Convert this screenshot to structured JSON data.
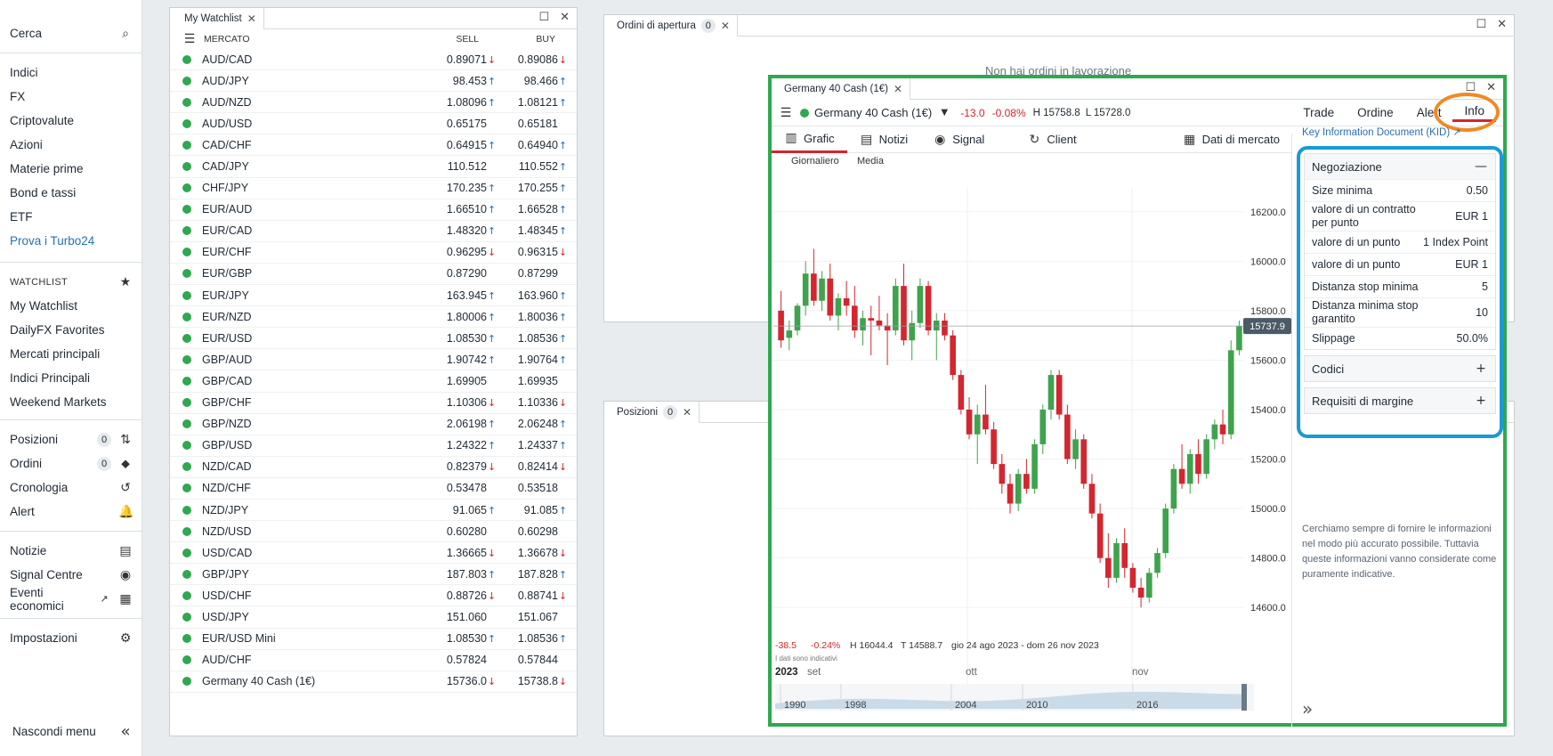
{
  "sidebar": {
    "search": "Cerca",
    "markets": [
      "Indici",
      "FX",
      "Criptovalute",
      "Azioni",
      "Materie prime",
      "Bond e tassi",
      "ETF"
    ],
    "promo": "Prova i Turbo24",
    "watchlist_head": "WATCHLIST",
    "watchlists": [
      "My Watchlist",
      "DailyFX Favorites",
      "Mercati principali",
      "Indici Principali",
      "Weekend Markets"
    ],
    "account": [
      {
        "label": "Posizioni",
        "count": "0"
      },
      {
        "label": "Ordini",
        "count": "0"
      },
      {
        "label": "Cronologia",
        "count": ""
      },
      {
        "label": "Alert",
        "count": ""
      }
    ],
    "tools": [
      "Notizie",
      "Signal Centre",
      "Eventi economici"
    ],
    "settings": "Impostazioni",
    "hide": "Nascondi menu"
  },
  "watchlist": {
    "tab": "My Watchlist",
    "col_market": "MERCATO",
    "col_sell": "SELL",
    "col_buy": "BUY",
    "rows": [
      {
        "name": "AUD/CAD",
        "sell": "0.89071",
        "sa": "down",
        "buy": "0.89086",
        "ba": "down"
      },
      {
        "name": "AUD/JPY",
        "sell": "98.453",
        "sa": "up",
        "buy": "98.466",
        "ba": "up"
      },
      {
        "name": "AUD/NZD",
        "sell": "1.08096",
        "sa": "up",
        "buy": "1.08121",
        "ba": "up"
      },
      {
        "name": "AUD/USD",
        "sell": "0.65175",
        "sa": "",
        "buy": "0.65181",
        "ba": ""
      },
      {
        "name": "CAD/CHF",
        "sell": "0.64915",
        "sa": "up",
        "buy": "0.64940",
        "ba": "up"
      },
      {
        "name": "CAD/JPY",
        "sell": "110.512",
        "sa": "",
        "buy": "110.552",
        "ba": "up"
      },
      {
        "name": "CHF/JPY",
        "sell": "170.235",
        "sa": "up",
        "buy": "170.255",
        "ba": "up"
      },
      {
        "name": "EUR/AUD",
        "sell": "1.66510",
        "sa": "up",
        "buy": "1.66528",
        "ba": "up"
      },
      {
        "name": "EUR/CAD",
        "sell": "1.48320",
        "sa": "up",
        "buy": "1.48345",
        "ba": "up"
      },
      {
        "name": "EUR/CHF",
        "sell": "0.96295",
        "sa": "down",
        "buy": "0.96315",
        "ba": "down"
      },
      {
        "name": "EUR/GBP",
        "sell": "0.87290",
        "sa": "",
        "buy": "0.87299",
        "ba": ""
      },
      {
        "name": "EUR/JPY",
        "sell": "163.945",
        "sa": "up",
        "buy": "163.960",
        "ba": "up"
      },
      {
        "name": "EUR/NZD",
        "sell": "1.80006",
        "sa": "up",
        "buy": "1.80036",
        "ba": "up"
      },
      {
        "name": "EUR/USD",
        "sell": "1.08530",
        "sa": "up",
        "buy": "1.08536",
        "ba": "up"
      },
      {
        "name": "GBP/AUD",
        "sell": "1.90742",
        "sa": "up",
        "buy": "1.90764",
        "ba": "up"
      },
      {
        "name": "GBP/CAD",
        "sell": "1.69905",
        "sa": "",
        "buy": "1.69935",
        "ba": ""
      },
      {
        "name": "GBP/CHF",
        "sell": "1.10306",
        "sa": "down",
        "buy": "1.10336",
        "ba": "down"
      },
      {
        "name": "GBP/NZD",
        "sell": "2.06198",
        "sa": "up",
        "buy": "2.06248",
        "ba": "up"
      },
      {
        "name": "GBP/USD",
        "sell": "1.24322",
        "sa": "up",
        "buy": "1.24337",
        "ba": "up"
      },
      {
        "name": "NZD/CAD",
        "sell": "0.82379",
        "sa": "down",
        "buy": "0.82414",
        "ba": "down"
      },
      {
        "name": "NZD/CHF",
        "sell": "0.53478",
        "sa": "",
        "buy": "0.53518",
        "ba": ""
      },
      {
        "name": "NZD/JPY",
        "sell": "91.065",
        "sa": "up",
        "buy": "91.085",
        "ba": "up"
      },
      {
        "name": "NZD/USD",
        "sell": "0.60280",
        "sa": "",
        "buy": "0.60298",
        "ba": ""
      },
      {
        "name": "USD/CAD",
        "sell": "1.36665",
        "sa": "down",
        "buy": "1.36678",
        "ba": "down"
      },
      {
        "name": "GBP/JPY",
        "sell": "187.803",
        "sa": "up",
        "buy": "187.828",
        "ba": "up"
      },
      {
        "name": "USD/CHF",
        "sell": "0.88726",
        "sa": "down",
        "buy": "0.88741",
        "ba": "down"
      },
      {
        "name": "USD/JPY",
        "sell": "151.060",
        "sa": "",
        "buy": "151.067",
        "ba": ""
      },
      {
        "name": "EUR/USD Mini",
        "sell": "1.08530",
        "sa": "up",
        "buy": "1.08536",
        "ba": "up"
      },
      {
        "name": "AUD/CHF",
        "sell": "0.57824",
        "sa": "",
        "buy": "0.57844",
        "ba": ""
      },
      {
        "name": "Germany 40 Cash (1€)",
        "sell": "15736.0",
        "sa": "down",
        "buy": "15738.8",
        "ba": "down"
      }
    ]
  },
  "orders_panel": {
    "tab": "Ordini di apertura",
    "count": "0",
    "empty": "Non hai ordini in lavorazione"
  },
  "positions_panel": {
    "tab": "Posizioni",
    "count": "0"
  },
  "germany": {
    "tab": "Germany 40 Cash (1€)",
    "instrument": "Germany 40 Cash (1€)",
    "change": "-13.0",
    "change_pct": "-0.08%",
    "high": "H 15758.8",
    "low": "L 15728.0",
    "nav": [
      "Trade",
      "Ordine",
      "Alert",
      "Info"
    ],
    "chart_tabs": [
      "Grafic",
      "Notizi",
      "Signal",
      "Client",
      "Dati di mercato"
    ],
    "chart_opts": [
      "Giornaliero",
      "Media"
    ],
    "price_tag": "15737.9",
    "stats": {
      "chg": "-38.5",
      "pct": "-0.24%",
      "h": "H 16044.4",
      "t": "T 14588.7",
      "range": "gio 24 ago 2023 - dom 26 nov 2023"
    },
    "disclaimer_small": "I dati sono indicativi",
    "x_labels": [
      "2023",
      "set",
      "ott",
      "nov"
    ],
    "nav_years": [
      "1990",
      "1998",
      "2004",
      "2010",
      "2016"
    ]
  },
  "info": {
    "kid": "Key Information Document (KID)",
    "trading_head": "Negoziazione",
    "rows": [
      {
        "k": "Size minima",
        "v": "0.50"
      },
      {
        "k": "valore di un contratto per punto",
        "v": "EUR 1"
      },
      {
        "k": "valore di un punto",
        "v": "1 Index Point"
      },
      {
        "k": "valore di un punto",
        "v": "EUR 1"
      },
      {
        "k": "Distanza stop minima",
        "v": "5"
      },
      {
        "k": "Distanza minima stop garantito",
        "v": "10"
      },
      {
        "k": "Slippage",
        "v": "50.0%"
      }
    ],
    "codes": "Codici",
    "margin": "Requisiti di margine",
    "note": "Cerchiamo sempre di fornire le informazioni nel modo più accurato possibile. Tuttavia queste informazioni vanno considerate come puramente indicative."
  },
  "chart_data": {
    "type": "candlestick",
    "y_ticks": [
      "16200.0",
      "16000.0",
      "15800.0",
      "15600.0",
      "15400.0",
      "15200.0",
      "15000.0",
      "14800.0",
      "14600.0"
    ],
    "ylim": [
      14500,
      16300
    ],
    "candles": [
      [
        15800,
        15880,
        15650,
        15680
      ],
      [
        15690,
        15760,
        15640,
        15720
      ],
      [
        15720,
        15830,
        15700,
        15820
      ],
      [
        15820,
        16000,
        15780,
        15950
      ],
      [
        15950,
        16050,
        15820,
        15840
      ],
      [
        15840,
        15960,
        15800,
        15930
      ],
      [
        15930,
        15990,
        15760,
        15780
      ],
      [
        15780,
        15870,
        15720,
        15850
      ],
      [
        15850,
        15920,
        15780,
        15820
      ],
      [
        15820,
        15900,
        15690,
        15720
      ],
      [
        15720,
        15800,
        15660,
        15770
      ],
      [
        15770,
        15820,
        15620,
        15760
      ],
      [
        15760,
        15860,
        15720,
        15740
      ],
      [
        15740,
        15790,
        15580,
        15720
      ],
      [
        15720,
        15930,
        15700,
        15900
      ],
      [
        15900,
        15990,
        15660,
        15680
      ],
      [
        15680,
        15800,
        15600,
        15750
      ],
      [
        15750,
        15930,
        15730,
        15900
      ],
      [
        15900,
        15920,
        15700,
        15720
      ],
      [
        15720,
        15790,
        15600,
        15760
      ],
      [
        15760,
        15790,
        15680,
        15700
      ],
      [
        15700,
        15720,
        15520,
        15540
      ],
      [
        15540,
        15560,
        15380,
        15400
      ],
      [
        15400,
        15450,
        15280,
        15300
      ],
      [
        15300,
        15420,
        15180,
        15380
      ],
      [
        15380,
        15500,
        15300,
        15320
      ],
      [
        15320,
        15350,
        15160,
        15180
      ],
      [
        15180,
        15220,
        15060,
        15100
      ],
      [
        15100,
        15140,
        14980,
        15020
      ],
      [
        15020,
        15160,
        14990,
        15140
      ],
      [
        15140,
        15200,
        15060,
        15080
      ],
      [
        15080,
        15280,
        15060,
        15260
      ],
      [
        15260,
        15420,
        15220,
        15400
      ],
      [
        15400,
        15560,
        15360,
        15540
      ],
      [
        15540,
        15560,
        15360,
        15380
      ],
      [
        15380,
        15420,
        15180,
        15200
      ],
      [
        15200,
        15320,
        15160,
        15280
      ],
      [
        15280,
        15300,
        15080,
        15100
      ],
      [
        15100,
        15140,
        14960,
        14980
      ],
      [
        14980,
        15020,
        14780,
        14800
      ],
      [
        14800,
        14900,
        14680,
        14720
      ],
      [
        14720,
        14880,
        14700,
        14860
      ],
      [
        14860,
        14920,
        14720,
        14760
      ],
      [
        14760,
        14780,
        14660,
        14680
      ],
      [
        14680,
        14720,
        14600,
        14640
      ],
      [
        14640,
        14760,
        14620,
        14740
      ],
      [
        14740,
        14840,
        14720,
        14820
      ],
      [
        14820,
        15020,
        14800,
        15000
      ],
      [
        15000,
        15180,
        14980,
        15160
      ],
      [
        15160,
        15260,
        15080,
        15100
      ],
      [
        15100,
        15240,
        15060,
        15220
      ],
      [
        15220,
        15280,
        15100,
        15140
      ],
      [
        15140,
        15300,
        15120,
        15280
      ],
      [
        15280,
        15360,
        15240,
        15340
      ],
      [
        15340,
        15400,
        15260,
        15300
      ],
      [
        15300,
        15680,
        15280,
        15640
      ],
      [
        15640,
        15760,
        15620,
        15738
      ]
    ]
  }
}
